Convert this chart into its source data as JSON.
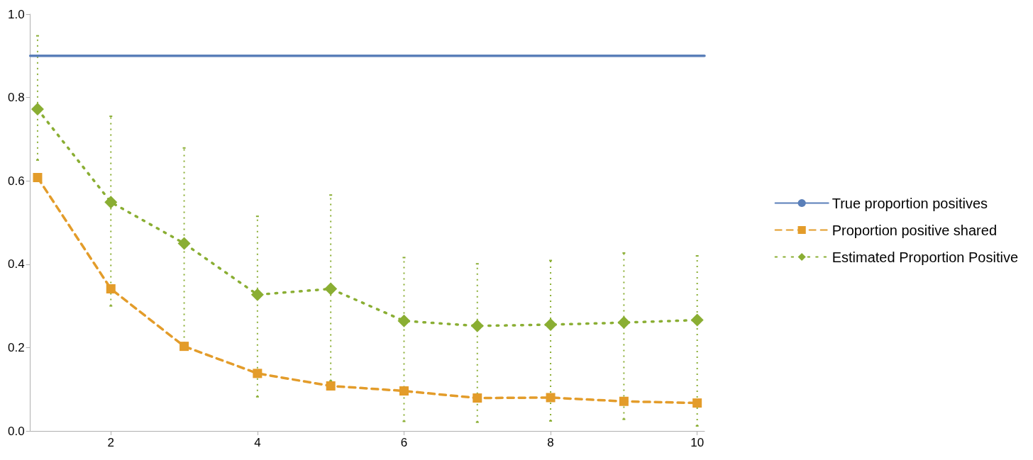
{
  "chart_data": {
    "type": "line",
    "xlim": [
      0.9,
      10.1
    ],
    "xticks": [
      2,
      4,
      6,
      8,
      10
    ],
    "ylim": [
      0,
      1
    ],
    "yticks": [
      {
        "value": 0,
        "label": "0.0"
      },
      0.2,
      0.4,
      0.6,
      0.8,
      {
        "value": 1,
        "label": "1.0"
      }
    ],
    "grid": false,
    "legend": "right",
    "series": [
      {
        "name": "True proportion positives",
        "color": "#5a7fb9",
        "x": [
          0.9,
          10.1
        ],
        "values": [
          0.9,
          0.9
        ],
        "marker": "none",
        "line_style": "solid"
      },
      {
        "name": "Proportion positive shared",
        "color": "#e39c2a",
        "x": [
          1,
          2,
          3,
          4,
          5,
          6,
          7,
          8,
          9,
          10
        ],
        "values": [
          0.608,
          0.341,
          0.203,
          0.138,
          0.108,
          0.096,
          0.079,
          0.08,
          0.071,
          0.067
        ],
        "marker": "square",
        "line_style": "dashed"
      },
      {
        "name": "Estimated Proportion Positive",
        "color": "#8aae33",
        "x": [
          1,
          2,
          3,
          4,
          5,
          6,
          7,
          8,
          9,
          10
        ],
        "values": [
          0.772,
          0.549,
          0.45,
          0.327,
          0.341,
          0.264,
          0.252,
          0.255,
          0.26,
          0.266
        ],
        "marker": "diamond",
        "line_style": "dotted",
        "errors": [
          [
            0.65,
            0.948
          ],
          [
            0.3,
            0.755
          ],
          [
            0.21,
            0.679
          ],
          [
            0.082,
            0.515
          ],
          [
            0.12,
            0.566
          ],
          [
            0.023,
            0.416
          ],
          [
            0.021,
            0.401
          ],
          [
            0.024,
            0.409
          ],
          [
            0.028,
            0.427
          ],
          [
            0.012,
            0.42
          ]
        ]
      }
    ]
  }
}
